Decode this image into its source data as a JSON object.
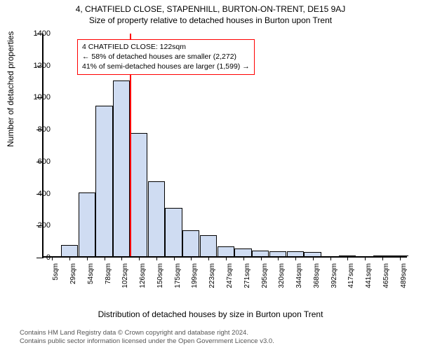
{
  "title_main": "4, CHATFIELD CLOSE, STAPENHILL, BURTON-ON-TRENT, DE15 9AJ",
  "title_sub": "Size of property relative to detached houses in Burton upon Trent",
  "chart": {
    "type": "histogram",
    "ylabel": "Number of detached properties",
    "xlabel": "Distribution of detached houses by size in Burton upon Trent",
    "ylim": [
      0,
      1400
    ],
    "ytick_step": 200,
    "yticks": [
      0,
      200,
      400,
      600,
      800,
      1000,
      1200,
      1400
    ],
    "xtick_labels": [
      "5sqm",
      "29sqm",
      "54sqm",
      "78sqm",
      "102sqm",
      "126sqm",
      "150sqm",
      "175sqm",
      "199sqm",
      "223sqm",
      "247sqm",
      "271sqm",
      "295sqm",
      "320sqm",
      "344sqm",
      "368sqm",
      "392sqm",
      "417sqm",
      "441sqm",
      "465sqm",
      "489sqm"
    ],
    "bar_fill": "#cfdcf2",
    "bar_stroke": "#000000",
    "bar_values": [
      0,
      70,
      400,
      940,
      1100,
      770,
      470,
      300,
      160,
      130,
      60,
      50,
      35,
      30,
      30,
      25,
      0,
      5,
      0,
      5,
      3
    ],
    "highlight_index": 4,
    "highlight_color": "#ff0000",
    "background_color": "#ffffff",
    "axis_color": "#000000"
  },
  "annotation": {
    "line1": "4 CHATFIELD CLOSE: 122sqm",
    "line2": "← 58% of detached houses are smaller (2,272)",
    "line3": "41% of semi-detached houses are larger (1,599) →",
    "border_color": "#ff0000"
  },
  "footer": {
    "line1": "Contains HM Land Registry data © Crown copyright and database right 2024.",
    "line2": "Contains public sector information licensed under the Open Government Licence v3.0."
  }
}
